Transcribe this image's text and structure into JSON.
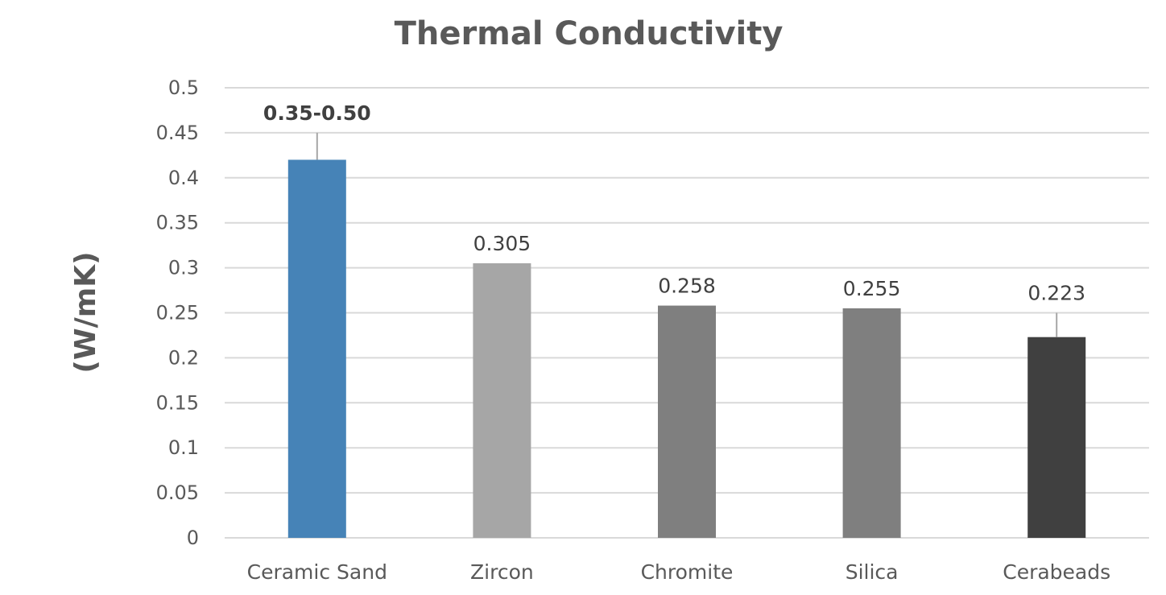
{
  "chart_data": {
    "type": "bar",
    "title": "Thermal Conductivity",
    "xlabel": "",
    "ylabel": "(W/mK)",
    "ylim": [
      0,
      0.5
    ],
    "ytick_step": 0.05,
    "yticks": [
      "0",
      "0.05",
      "0.1",
      "0.15",
      "0.2",
      "0.25",
      "0.3",
      "0.35",
      "0.4",
      "0.45",
      "0.5"
    ],
    "grid": true,
    "legend": "none",
    "categories": [
      "Ceramic Sand",
      "Zircon",
      "Chromite",
      "Silica",
      "Cerabeads"
    ],
    "values": [
      0.42,
      0.305,
      0.258,
      0.255,
      0.223
    ],
    "error_upper": [
      0.45,
      null,
      null,
      null,
      0.25
    ],
    "data_labels": [
      "0.35-0.50",
      "0.305",
      "0.258",
      "0.255",
      "0.223"
    ],
    "data_label_bold": [
      true,
      false,
      false,
      false,
      false
    ],
    "colors": [
      "#4683b7",
      "#a6a6a6",
      "#7f7f7f",
      "#7f7f7f",
      "#404040"
    ]
  }
}
